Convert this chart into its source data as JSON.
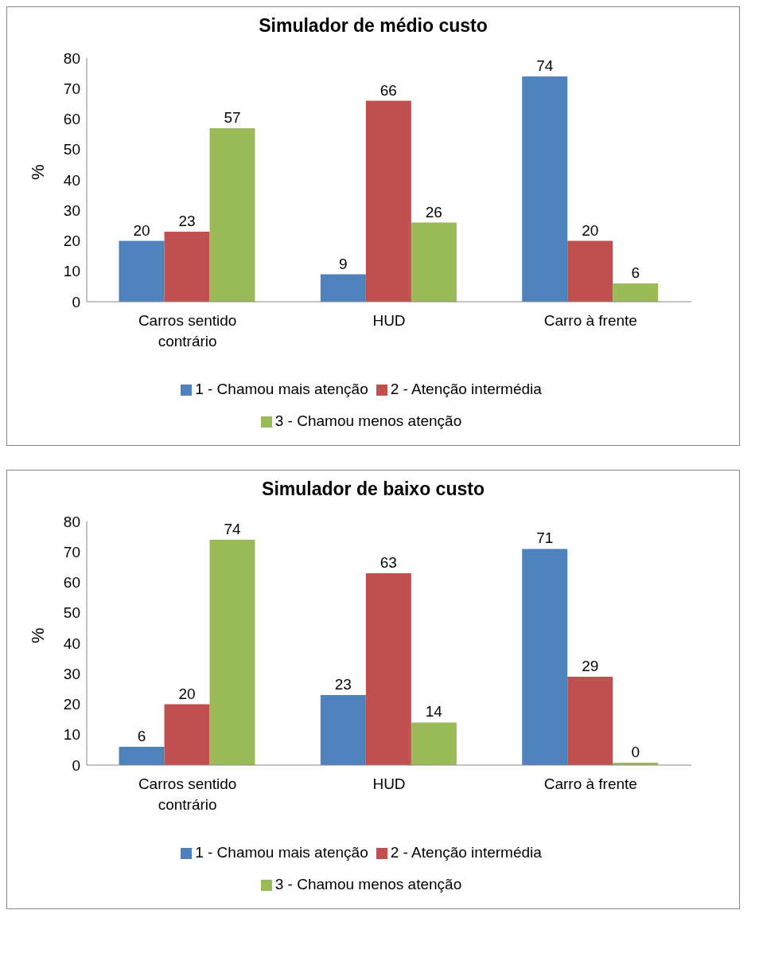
{
  "chart_data": [
    {
      "type": "bar",
      "title": "Simulador de médio custo",
      "ylabel": "%",
      "categories": [
        "Carros sentido contrário",
        "HUD",
        "Carro à frente"
      ],
      "series": [
        {
          "name": "1 - Chamou mais atenção",
          "color": "#4f81bd",
          "values": [
            20,
            9,
            74
          ]
        },
        {
          "name": "2 - Atenção intermédia",
          "color": "#c0504d",
          "values": [
            23,
            66,
            20
          ]
        },
        {
          "name": "3 - Chamou menos atenção",
          "color": "#9bbb59",
          "values": [
            57,
            26,
            6
          ]
        }
      ],
      "ylim": [
        0,
        80
      ],
      "yticks": [
        0,
        10,
        20,
        30,
        40,
        50,
        60,
        70,
        80
      ],
      "grid": false,
      "data_labels": true,
      "legend": "bottom"
    },
    {
      "type": "bar",
      "title": "Simulador de baixo custo",
      "ylabel": "%",
      "categories": [
        "Carros sentido contrário",
        "HUD",
        "Carro à frente"
      ],
      "series": [
        {
          "name": "1 - Chamou mais atenção",
          "color": "#4f81bd",
          "values": [
            6,
            23,
            71
          ]
        },
        {
          "name": "2 - Atenção intermédia",
          "color": "#c0504d",
          "values": [
            20,
            63,
            29
          ]
        },
        {
          "name": "3 - Chamou menos atenção",
          "color": "#9bbb59",
          "values": [
            74,
            14,
            0
          ]
        }
      ],
      "ylim": [
        0,
        80
      ],
      "yticks": [
        0,
        10,
        20,
        30,
        40,
        50,
        60,
        70,
        80
      ],
      "grid": false,
      "data_labels": true,
      "legend": "bottom"
    }
  ]
}
